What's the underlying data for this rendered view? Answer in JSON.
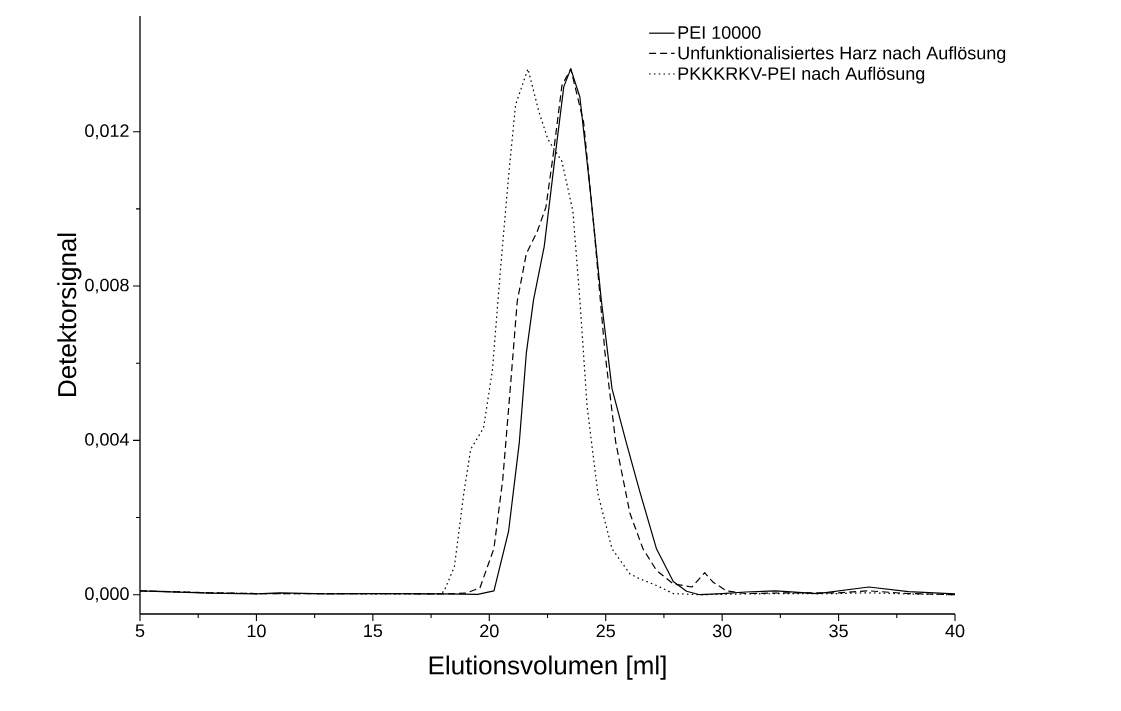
{
  "chart_data": {
    "type": "line",
    "xlabel": "Elutionsvolumen [ml]",
    "ylabel": "Detektorsignal",
    "xlim": [
      5,
      40
    ],
    "ylim": [
      -0.0005,
      0.015
    ],
    "xticks": [
      5,
      10,
      15,
      20,
      25,
      30,
      35,
      40
    ],
    "yticks": [
      {
        "value": 0,
        "label": "0,000"
      },
      {
        "value": 0.004,
        "label": "0,004"
      },
      {
        "value": 0.008,
        "label": "0,008"
      },
      {
        "value": 0.012,
        "label": "0,012"
      }
    ],
    "grid": false,
    "legend": "top right",
    "marker": "none",
    "series": [
      {
        "name": "PEI 10000",
        "color": "#000000",
        "line_style": "solid",
        "x": [
          5,
          8,
          10,
          11,
          13,
          15,
          18,
          19.5,
          20.2,
          20.83,
          21.29,
          21.59,
          21.9,
          22.36,
          22.82,
          23.2,
          23.5,
          23.89,
          24.35,
          24.81,
          25.27,
          25.88,
          26.47,
          27.18,
          27.9,
          28.47,
          29.04,
          30,
          31,
          32.3,
          34.1,
          36.3,
          38,
          40
        ],
        "values": [
          0.0001,
          4e-05,
          2e-05,
          5e-05,
          2e-05,
          3e-05,
          2e-05,
          1e-05,
          0.0001,
          0.00165,
          0.00395,
          0.00626,
          0.00764,
          0.00903,
          0.01133,
          0.01317,
          0.01363,
          0.0129,
          0.0104,
          0.00764,
          0.00534,
          0.00395,
          0.00266,
          0.00119,
          0.00034,
          9e-05,
          0,
          3e-05,
          7e-05,
          0.0001,
          3e-05,
          0.0002,
          8e-05,
          2e-05
        ]
      },
      {
        "name": "Unfunktionalisiertes Harz nach Auflösung",
        "color": "#000000",
        "line_style": "dashed",
        "x": [
          5,
          8,
          10,
          13,
          15,
          18,
          19,
          19.6,
          20.2,
          20.58,
          20.9,
          21.2,
          21.59,
          22.05,
          22.43,
          22.73,
          23.12,
          23.5,
          24.05,
          24.5,
          24.97,
          25.43,
          26.04,
          26.6,
          27.18,
          27.9,
          28.7,
          29.25,
          29.6,
          30.19,
          31.05,
          33,
          35,
          36.3,
          38,
          40
        ],
        "values": [
          0.0001,
          5e-05,
          3e-05,
          3e-05,
          3e-05,
          2e-05,
          4e-05,
          0.00018,
          0.0012,
          0.003,
          0.00534,
          0.0076,
          0.00884,
          0.0094,
          0.01004,
          0.01133,
          0.0132,
          0.01363,
          0.01225,
          0.00948,
          0.00626,
          0.00395,
          0.00211,
          0.00119,
          0.00063,
          0.00028,
          0.0002,
          0.00057,
          0.00033,
          0.0001,
          3e-05,
          5e-05,
          5e-05,
          0.0001,
          3e-05,
          0
        ]
      },
      {
        "name": "PKKKRKV-PEI nach Auflösung",
        "color": "#000000",
        "line_style": "dotted",
        "x": [
          5,
          8,
          10,
          13,
          15,
          17,
          17.8,
          18.05,
          18.5,
          18.9,
          19.2,
          19.75,
          20.13,
          20.5,
          20.83,
          21.13,
          21.66,
          22.13,
          22.52,
          23.12,
          23.59,
          23.89,
          24.2,
          24.67,
          25.27,
          26.04,
          26.47,
          27.18,
          27.9,
          29,
          31,
          33,
          35,
          36.3,
          38,
          40
        ],
        "values": [
          0.0001,
          5e-05,
          3e-05,
          3e-05,
          2e-05,
          2e-05,
          2e-05,
          8e-05,
          0.00072,
          0.0026,
          0.00377,
          0.00432,
          0.0058,
          0.00857,
          0.01086,
          0.0127,
          0.01363,
          0.01252,
          0.0118,
          0.01123,
          0.00994,
          0.00764,
          0.00488,
          0.0026,
          0.00119,
          0.00054,
          0.00041,
          0.00024,
          3e-05,
          0,
          2e-05,
          3e-05,
          3e-05,
          5e-05,
          2e-05,
          0
        ]
      }
    ]
  }
}
